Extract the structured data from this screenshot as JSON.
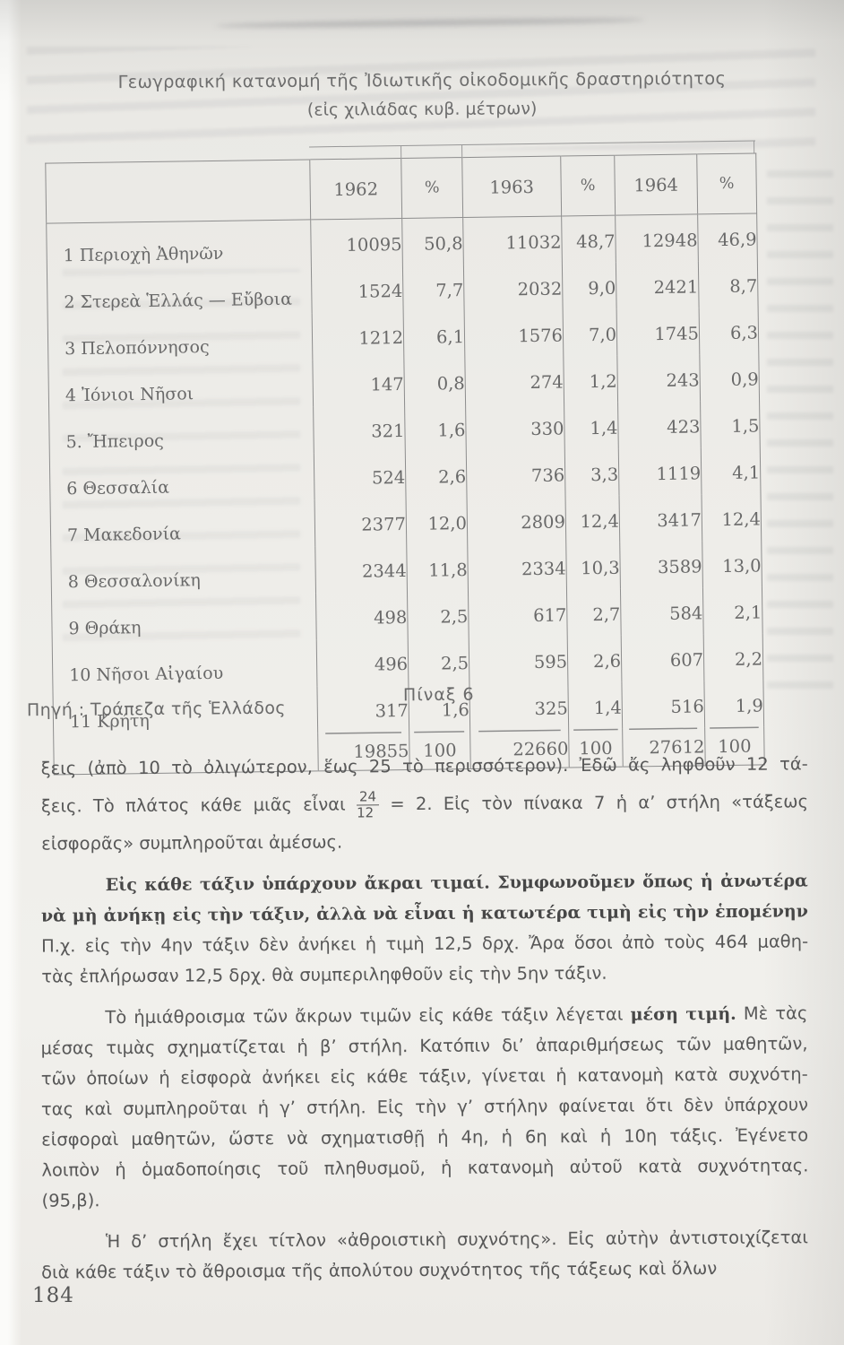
{
  "page": {
    "number": "184"
  },
  "colors": {
    "paper": "#eceae6",
    "ink_body": "#585858",
    "ink_bold": "#474747",
    "ink_table": "#696969",
    "rule": "#8d8d8d"
  },
  "table": {
    "title_line1": "Γεωγραφική κατανομή τῆς Ἰδιωτικῆς οἰκοδομικῆς δραστηριότητος",
    "title_line2": "(εἰς χιλιάδας κυβ. μέτρων)",
    "caption": "Πίναξ 6",
    "source": "Πηγή : Τράπεζα τῆς Ἑλλάδος",
    "columns": [
      "1962",
      "%",
      "1963",
      "%",
      "1964",
      "%"
    ],
    "rows": [
      {
        "label": "1 Περιοχὴ Ἀθηνῶν",
        "values": [
          "10095",
          "50,8",
          "11032",
          "48,7",
          "12948",
          "46,9"
        ]
      },
      {
        "label": "2 Στερεὰ Ἑλλάς — Εὔβοια",
        "values": [
          "1524",
          "7,7",
          "2032",
          "9,0",
          "2421",
          "8,7"
        ]
      },
      {
        "label": "3 Πελοπόννησος",
        "values": [
          "1212",
          "6,1",
          "1576",
          "7,0",
          "1745",
          "6,3"
        ]
      },
      {
        "label": "4 Ἰόνιοι Νῆσοι",
        "values": [
          "147",
          "0,8",
          "274",
          "1,2",
          "243",
          "0,9"
        ]
      },
      {
        "label": "5. Ἤπειρος",
        "values": [
          "321",
          "1,6",
          "330",
          "1,4",
          "423",
          "1,5"
        ]
      },
      {
        "label": "6 Θεσσαλία",
        "values": [
          "524",
          "2,6",
          "736",
          "3,3",
          "1119",
          "4,1"
        ]
      },
      {
        "label": "7 Μακεδονία",
        "values": [
          "2377",
          "12,0",
          "2809",
          "12,4",
          "3417",
          "12,4"
        ]
      },
      {
        "label": "8 Θεσσαλονίκη",
        "values": [
          "2344",
          "11,8",
          "2334",
          "10,3",
          "3589",
          "13,0"
        ]
      },
      {
        "label": "9 Θράκη",
        "values": [
          "498",
          "2,5",
          "617",
          "2,7",
          "584",
          "2,1"
        ]
      },
      {
        "label": "10 Νῆσοι Αἰγαίου",
        "values": [
          "496",
          "2,5",
          "595",
          "2,6",
          "607",
          "2,2"
        ]
      },
      {
        "label": "11 Κρήτη",
        "values": [
          "317",
          "1,6",
          "325",
          "1,4",
          "516",
          "1,9"
        ]
      }
    ],
    "totals": [
      "19855",
      "100",
      "22660",
      "100",
      "27612",
      "100"
    ]
  },
  "body": {
    "paragraphs": [
      {
        "indent": false,
        "lines": [
          [
            {
              "t": "ξεις (ἀπὸ 10 τὸ ὀλιγώτερον, ἕως 25 τὸ περισσότερον). Ἐδῶ ἄς ληφθοῦν 12 τά-"
            }
          ],
          [
            {
              "t": "ξεις.  Τὸ πλάτος κάθε μιᾶς εἶναι "
            },
            {
              "frac": [
                "24",
                "12"
              ]
            },
            {
              "t": " = 2. Εἰς τὸν πίνακα 7 ἡ α’ στήλη «τάξεως"
            }
          ],
          [
            {
              "t": "εἰσφορᾶς» συμπληροῦται ἀμέσως."
            }
          ]
        ]
      },
      {
        "indent": true,
        "lines": [
          [
            {
              "t": "Εἰς κάθε τάξιν ὑπάρχουν ἄκραι τιμαί. Συμφωνοῦμεν ὅπως ἡ ἀνωτέρα τιμὴ",
              "b": true
            }
          ],
          [
            {
              "t": "νὰ μὴ ἀνήκῃ εἰς τὴν τάξιν, ἀλλὰ νὰ εἶναι ἡ κατωτέρα τιμὴ εἰς τὴν ἑπομένην τάξιν.",
              "b": true
            }
          ],
          [
            {
              "t": "Π.χ. εἰς τὴν 4ην τάξιν δὲν ἀνήκει ἡ τιμὴ 12,5 δρχ. Ἄρα ὅσοι ἀπὸ τοὺς 464 μαθη-"
            }
          ],
          [
            {
              "t": "τὰς ἐπλήρωσαν 12,5 δρχ. θὰ συμπεριληφθοῦν εἰς τὴν 5ην τάξιν."
            }
          ]
        ]
      },
      {
        "indent": true,
        "lines": [
          [
            {
              "t": "Τὸ ἡμιάθροισμα τῶν ἄκρων τιμῶν εἰς κάθε τάξιν λέγεται "
            },
            {
              "t": "μέση τιμή.",
              "b": true
            },
            {
              "t": " Μὲ τὰς"
            }
          ],
          [
            {
              "t": "μέσας τιμὰς σχηματίζεται ἡ β’ στήλη. Κατόπιν δι’ ἀπαριθμήσεως τῶν μαθητῶν,"
            }
          ],
          [
            {
              "t": "τῶν ὁποίων ἡ εἰσφορὰ ἀνήκει εἰς κάθε τάξιν, γίνεται ἡ κατανομὴ κατὰ συχνότη-"
            }
          ],
          [
            {
              "t": "τας καὶ συμπληροῦται ἡ γ’ στήλη. Εἰς τὴν γ’ στήλην φαίνεται ὅτι δὲν ὑπάρχουν"
            }
          ],
          [
            {
              "t": "εἰσφοραὶ μαθητῶν, ὥστε νὰ σχηματισθῇ ἡ 4η, ἡ 6η καὶ ἡ 10η τάξις. Ἐγένετο"
            }
          ],
          [
            {
              "t": "λοιπὸν ἡ ὁμαδοποίησις τοῦ πληθυσμοῦ, ἡ κατανομὴ αὐτοῦ κατὰ συχνότητας."
            }
          ],
          [
            {
              "t": "(95,β)."
            }
          ]
        ]
      },
      {
        "indent": true,
        "lines": [
          [
            {
              "t": "Ἡ δ’ στήλη ἔχει τίτλον «ἀθροιστικὴ συχνότης». Εἰς αὐτὴν ἀντιστοιχίζεται"
            }
          ],
          [
            {
              "t": "διὰ κάθε τάξιν τὸ ἄθροισμα τῆς ἀπολύτου συχνότητος τῆς τάξεως καὶ ὅλων"
            }
          ]
        ]
      }
    ]
  }
}
